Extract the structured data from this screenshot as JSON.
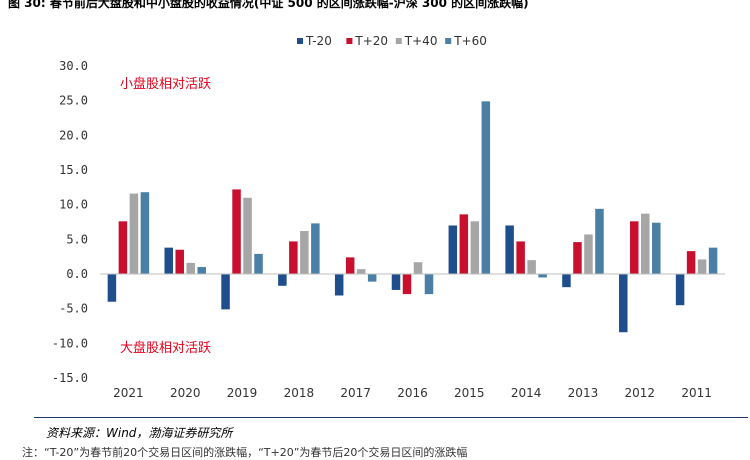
{
  "header": {
    "title": "图 30: 春节前后大盘股和中小盘股的收益情况(中证 500 的区间涨跌幅-沪深 300 的区间涨跌幅)"
  },
  "chart_data": {
    "type": "bar",
    "categories": [
      "2021",
      "2020",
      "2019",
      "2018",
      "2017",
      "2016",
      "2015",
      "2014",
      "2013",
      "2012",
      "2011"
    ],
    "series": [
      {
        "name": "T-20",
        "color": "#1f4e8c",
        "values": [
          -4.0,
          3.8,
          -5.1,
          -1.7,
          -3.1,
          -2.3,
          7.0,
          7.0,
          -1.9,
          -8.4,
          -4.5
        ]
      },
      {
        "name": "T+20",
        "color": "#c8102e",
        "values": [
          7.6,
          3.5,
          12.2,
          4.7,
          2.4,
          -2.9,
          8.6,
          4.7,
          4.6,
          7.6,
          3.3
        ]
      },
      {
        "name": "T+40",
        "color": "#a6a6a6",
        "values": [
          11.6,
          1.6,
          11.0,
          6.2,
          0.7,
          1.7,
          7.6,
          2.0,
          5.7,
          8.7,
          2.1
        ]
      },
      {
        "name": "T+60",
        "color": "#4a7fa6",
        "values": [
          11.8,
          1.0,
          2.9,
          7.3,
          -1.1,
          -2.9,
          24.9,
          -0.5,
          9.4,
          7.4,
          3.8
        ]
      }
    ],
    "ylim": [
      -15,
      30
    ],
    "yticks": [
      "30.0",
      "25.0",
      "20.0",
      "15.0",
      "10.0",
      "5.0",
      "0.0",
      "-5.0",
      "-10.0",
      "-15.0"
    ],
    "ytick_values": [
      30,
      25,
      20,
      15,
      10,
      5,
      0,
      -5,
      -10,
      -15
    ],
    "annotations": {
      "top": "小盘股相对活跃",
      "bottom": "大盘股相对活跃"
    },
    "xlabel": "",
    "ylabel": ""
  },
  "footer": {
    "source": "资料来源：Wind，渤海证券研究所",
    "note": "注：“T-20”为春节前20个交易日区间的涨跌幅，“T+20”为春节后20个交易日区间的涨跌幅"
  }
}
